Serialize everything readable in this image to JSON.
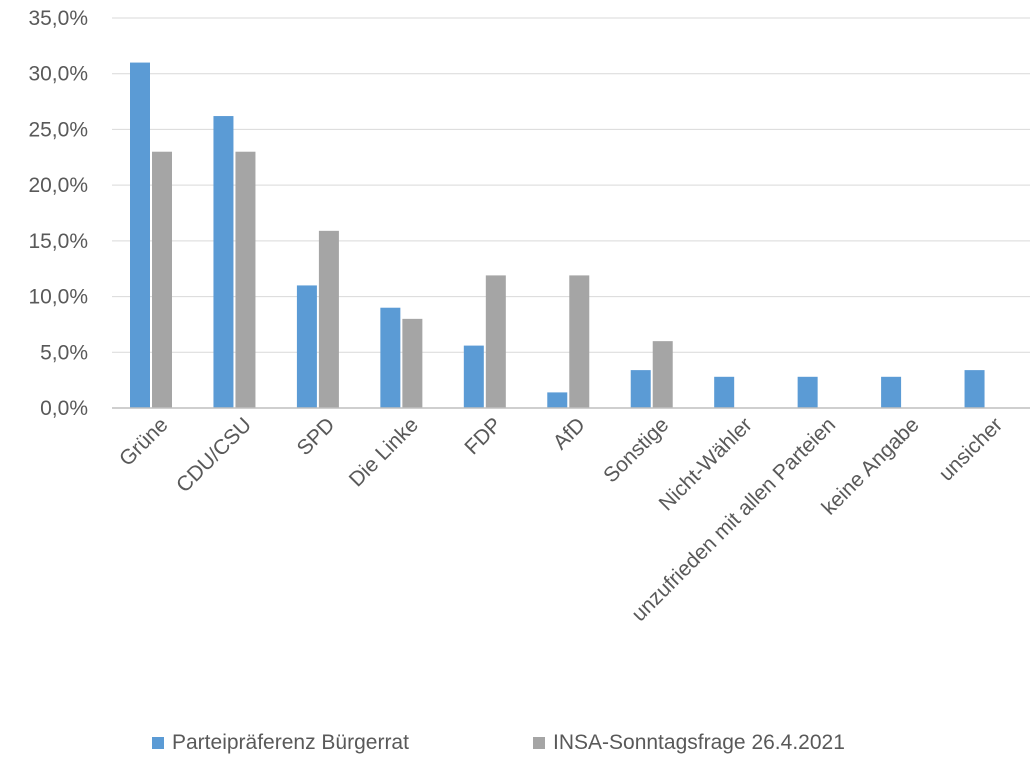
{
  "chart_data": {
    "type": "bar",
    "categories": [
      "Grüne",
      "CDU/CSU",
      "SPD",
      "Die Linke",
      "FDP",
      "AfD",
      "Sonstige",
      "Nicht-Wähler",
      "unzufrieden mit allen Parteien",
      "keine Angabe",
      "unsicher"
    ],
    "series": [
      {
        "name": "Parteipräferenz Bürgerrat",
        "color": "#5B9BD5",
        "values": [
          31.0,
          26.2,
          11.0,
          9.0,
          5.6,
          1.4,
          3.4,
          2.8,
          2.8,
          2.8,
          3.4
        ]
      },
      {
        "name": "INSA-Sonntagsfrage 26.4.2021",
        "color": "#A5A5A5",
        "values": [
          23.0,
          23.0,
          15.9,
          8.0,
          11.9,
          11.9,
          6.0,
          null,
          null,
          null,
          null
        ]
      }
    ],
    "y_ticks": [
      "0,0%",
      "5,0%",
      "10,0%",
      "15,0%",
      "20,0%",
      "25,0%",
      "30,0%",
      "35,0%"
    ],
    "ylim": [
      0,
      35
    ],
    "grid": true,
    "legend_position": "bottom",
    "title": "",
    "xlabel": "",
    "ylabel": ""
  }
}
